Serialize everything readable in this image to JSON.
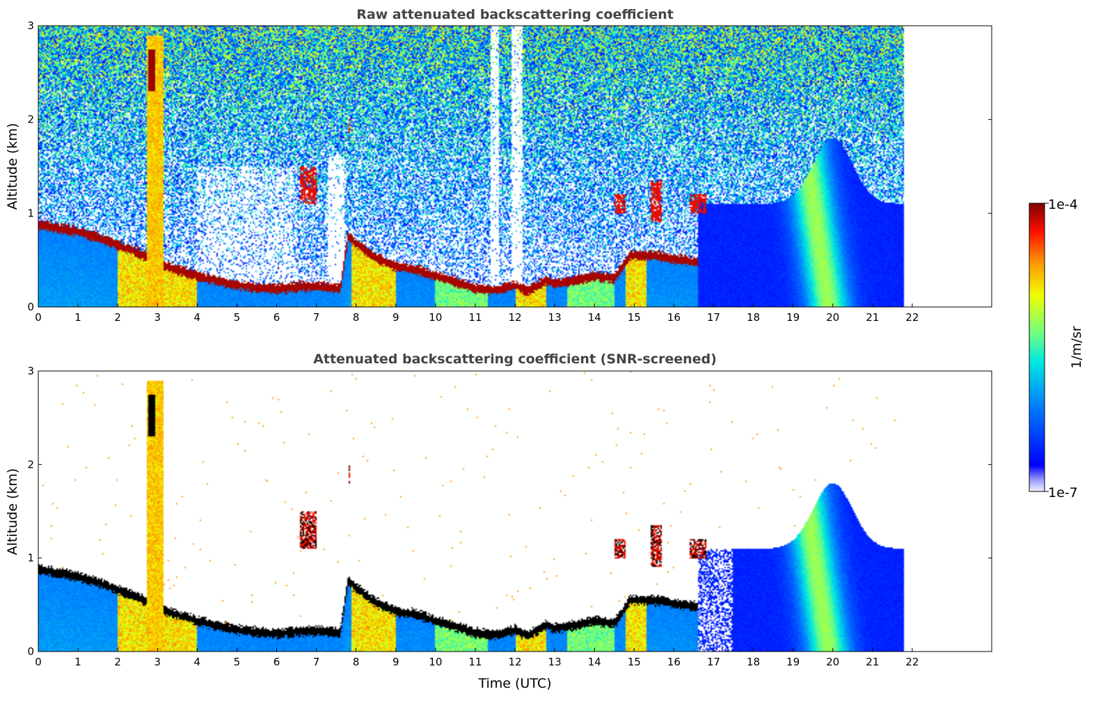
{
  "chart_data": [
    {
      "type": "heatmap",
      "title": "Raw attenuated backscattering coefficient",
      "xlabel": "",
      "ylabel": "Altitude (km)",
      "xlim": [
        0,
        24
      ],
      "ylim": [
        0,
        3
      ],
      "x_ticks": [
        "0",
        "1",
        "2",
        "3",
        "4",
        "5",
        "6",
        "7",
        "8",
        "9",
        "10",
        "11",
        "12",
        "13",
        "14",
        "15",
        "16",
        "17",
        "18",
        "19",
        "20",
        "21",
        "22"
      ],
      "y_ticks": [
        "0",
        "1",
        "2",
        "3"
      ],
      "data_end_time": 21.8,
      "screened": false
    },
    {
      "type": "heatmap",
      "title": "Attenuated backscattering coefficient (SNR-screened)",
      "xlabel": "Time (UTC)",
      "ylabel": "Altitude (km)",
      "xlim": [
        0,
        24
      ],
      "ylim": [
        0,
        3
      ],
      "x_ticks": [
        "0",
        "1",
        "2",
        "3",
        "4",
        "5",
        "6",
        "7",
        "8",
        "9",
        "10",
        "11",
        "12",
        "13",
        "14",
        "15",
        "16",
        "17",
        "18",
        "19",
        "20",
        "21",
        "22"
      ],
      "y_ticks": [
        "0",
        "1",
        "2",
        "3"
      ],
      "data_end_time": 21.8,
      "screened": true
    }
  ],
  "colorbar": {
    "max_label": "1e-4",
    "min_label": "1e-7",
    "unit_label": "1/m/sr",
    "log_min": -7,
    "log_max": -4,
    "colormap": "jet-with-white-lower-end"
  }
}
